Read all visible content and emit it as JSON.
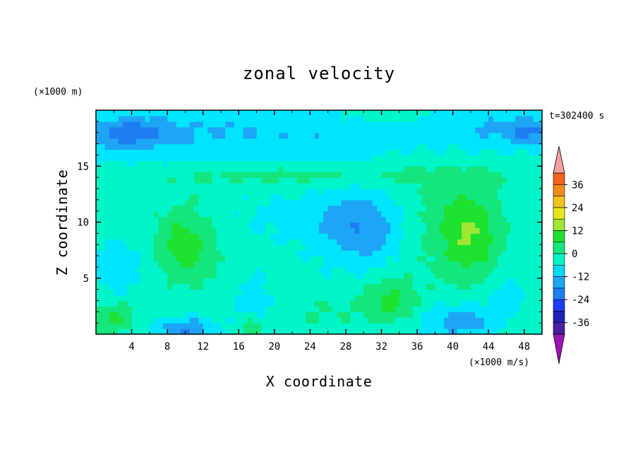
{
  "chart_data": {
    "type": "heatmap",
    "title": "zonal velocity",
    "xlabel": "X coordinate",
    "ylabel": "Z coordinate",
    "x_unit_note": "(×1000 m/s)",
    "y_unit_note": "(×1000 m)",
    "time_label": "t=302400 s",
    "xlim": [
      0,
      50
    ],
    "ylim": [
      0,
      20
    ],
    "x_ticks": [
      4,
      8,
      12,
      16,
      20,
      24,
      28,
      32,
      36,
      40,
      44,
      48
    ],
    "y_ticks": [
      5,
      10,
      15
    ],
    "colorbar": {
      "ticks": [
        36,
        24,
        12,
        0,
        -12,
        -24,
        -36
      ],
      "levels": [
        -42,
        -36,
        -30,
        -24,
        -18,
        -12,
        -6,
        0,
        6,
        12,
        18,
        24,
        30,
        36,
        42
      ],
      "colors": [
        "#9a14b4",
        "#4b1fa0",
        "#1f1fb4",
        "#1e3cff",
        "#1e7df0",
        "#1ea5f5",
        "#00d7ff",
        "#00f5c8",
        "#14e67d",
        "#1ee132",
        "#a0e632",
        "#e6e61e",
        "#f0c31e",
        "#f08c1e",
        "#f0641e",
        "#e63228",
        "#f5a0a0"
      ]
    },
    "field_colors": [
      "#1e7df0",
      "#1ea5f5",
      "#00e5ff",
      "#00f5c8",
      "#14e67d",
      "#1ee132",
      "#a0e632",
      "#e6e61e"
    ],
    "field_blobs": [
      {
        "x": 13,
        "z": 18,
        "sx": 30,
        "sz": 2.5,
        "a": -7
      },
      {
        "x": 4,
        "z": 18,
        "sx": 4,
        "sz": 1.2,
        "a": -10
      },
      {
        "x": 49,
        "z": 18,
        "sx": 3,
        "sz": 1.2,
        "a": -9
      },
      {
        "x": 45,
        "z": 18.5,
        "sx": 6,
        "sz": 1.5,
        "a": -5
      },
      {
        "x": 25,
        "z": 14.2,
        "sx": 22,
        "sz": 1.0,
        "a": 5
      },
      {
        "x": 32,
        "z": 19.6,
        "sx": 4,
        "sz": 0.6,
        "a": 5
      },
      {
        "x": 10,
        "z": 8,
        "sx": 3.5,
        "sz": 3.5,
        "a": 11
      },
      {
        "x": 3,
        "z": 6,
        "sx": 4,
        "sz": 3,
        "a": -4
      },
      {
        "x": 30,
        "z": 9.5,
        "sx": 5,
        "sz": 3.5,
        "a": -11
      },
      {
        "x": 42,
        "z": 9,
        "sx": 3.5,
        "sz": 4,
        "a": 12
      },
      {
        "x": 37,
        "z": 10,
        "sx": 5,
        "sz": 5,
        "a": 4
      },
      {
        "x": 33,
        "z": 3,
        "sx": 3,
        "sz": 2,
        "a": 9
      },
      {
        "x": 18,
        "z": 3,
        "sx": 3,
        "sz": 2.5,
        "a": -4
      },
      {
        "x": 41,
        "z": 1.2,
        "sx": 4,
        "sz": 1.5,
        "a": -11
      },
      {
        "x": 10,
        "z": 0.5,
        "sx": 3,
        "sz": 1.0,
        "a": -13
      },
      {
        "x": 2,
        "z": 1.5,
        "sx": 2.5,
        "sz": 1.4,
        "a": 9
      },
      {
        "x": 17.5,
        "z": 0.6,
        "sx": 1.2,
        "sz": 0.8,
        "a": 9
      },
      {
        "x": 46,
        "z": 3.5,
        "sx": 2,
        "sz": 1.5,
        "a": -6
      },
      {
        "x": 25,
        "z": 2,
        "sx": 6,
        "sz": 2,
        "a": 3
      },
      {
        "x": 22,
        "z": 10.5,
        "sx": 8,
        "sz": 2.5,
        "a": -3
      }
    ],
    "field_base": -1
  }
}
